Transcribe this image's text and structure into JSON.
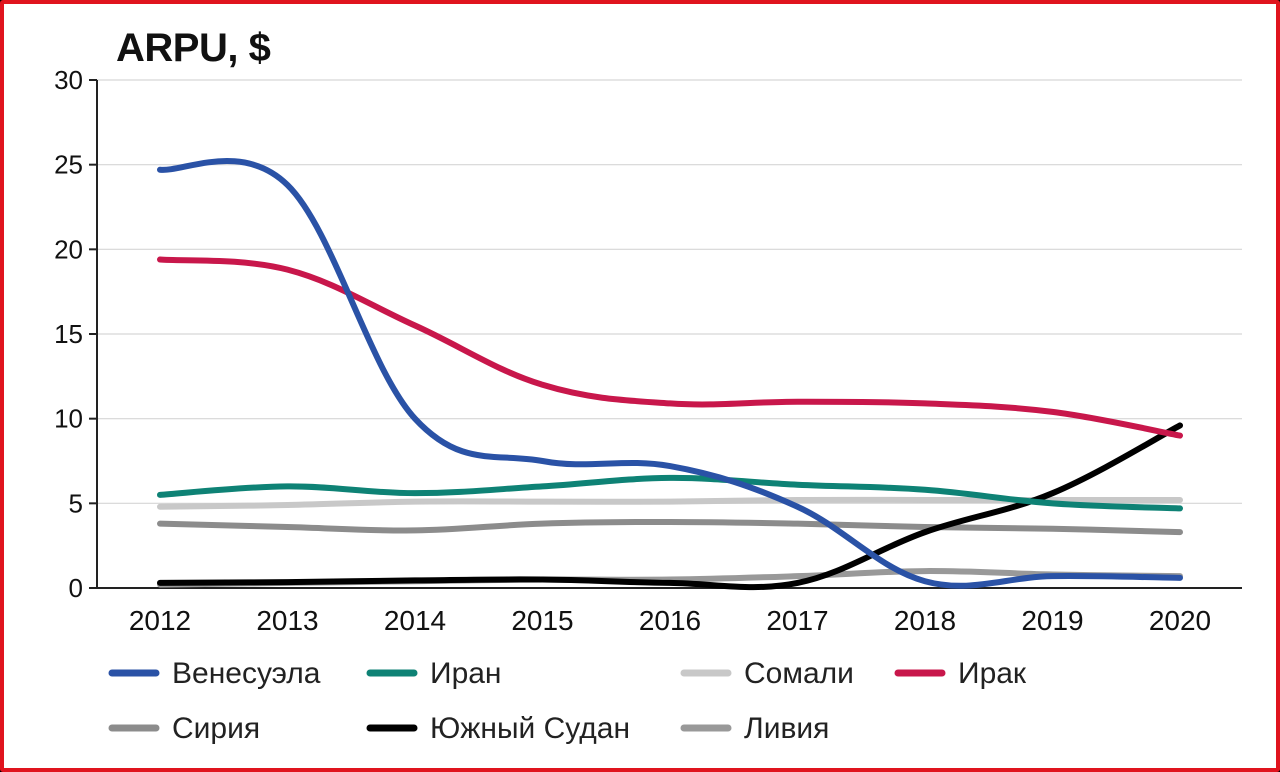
{
  "chart_data": {
    "type": "line",
    "title": "ARPU, $",
    "xlabel": "",
    "ylabel": "",
    "x": [
      "2012",
      "2013",
      "2014",
      "2015",
      "2016",
      "2017",
      "2018",
      "2019",
      "2020"
    ],
    "ylim": [
      0,
      30
    ],
    "yticks": [
      0,
      5,
      10,
      15,
      20,
      25,
      30
    ],
    "grid": true,
    "legend_position": "bottom",
    "series": [
      {
        "name": "Венесуэла",
        "color": "#2a52a6",
        "values": [
          24.7,
          23.8,
          10.0,
          7.5,
          7.2,
          4.8,
          0.4,
          0.7,
          0.6
        ]
      },
      {
        "name": "Иран",
        "color": "#0e8275",
        "values": [
          5.5,
          6.0,
          5.6,
          6.0,
          6.5,
          6.1,
          5.8,
          5.0,
          4.7
        ]
      },
      {
        "name": "Сомали",
        "color": "#c8c8c8",
        "values": [
          4.8,
          4.9,
          5.1,
          5.1,
          5.1,
          5.2,
          5.2,
          5.2,
          5.2
        ]
      },
      {
        "name": "Ирак",
        "color": "#c8174b",
        "values": [
          19.4,
          18.8,
          15.5,
          12.0,
          10.9,
          11.0,
          10.9,
          10.4,
          9.0
        ]
      },
      {
        "name": "Сирия",
        "color": "#8c8c8c",
        "values": [
          3.8,
          3.6,
          3.4,
          3.8,
          3.9,
          3.8,
          3.6,
          3.5,
          3.3
        ]
      },
      {
        "name": "Южный Судан",
        "color": "#000000",
        "values": [
          0.3,
          0.35,
          0.45,
          0.5,
          0.3,
          0.3,
          3.3,
          5.6,
          9.6
        ]
      },
      {
        "name": "Ливия",
        "color": "#999999",
        "values": [
          0.2,
          0.3,
          0.4,
          0.5,
          0.5,
          0.7,
          1.0,
          0.8,
          0.7
        ]
      }
    ]
  }
}
